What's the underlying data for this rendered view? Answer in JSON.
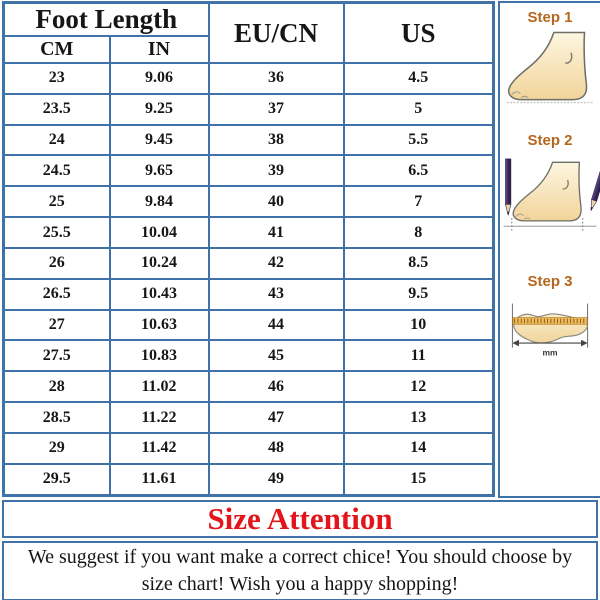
{
  "table": {
    "header": {
      "foot_length": "Foot Length",
      "cm": "CM",
      "in": "IN",
      "eu_cn": "EU/CN",
      "us": "US"
    }
  },
  "chart_data": {
    "type": "table",
    "column_groups": [
      {
        "label": "Foot Length",
        "columns": [
          "CM",
          "IN"
        ]
      }
    ],
    "columns": [
      "CM",
      "IN",
      "EU/CN",
      "US"
    ],
    "rows": [
      [
        "23",
        "9.06",
        "36",
        "4.5"
      ],
      [
        "23.5",
        "9.25",
        "37",
        "5"
      ],
      [
        "24",
        "9.45",
        "38",
        "5.5"
      ],
      [
        "24.5",
        "9.65",
        "39",
        "6.5"
      ],
      [
        "25",
        "9.84",
        "40",
        "7"
      ],
      [
        "25.5",
        "10.04",
        "41",
        "8"
      ],
      [
        "26",
        "10.24",
        "42",
        "8.5"
      ],
      [
        "26.5",
        "10.43",
        "43",
        "9.5"
      ],
      [
        "27",
        "10.63",
        "44",
        "10"
      ],
      [
        "27.5",
        "10.83",
        "45",
        "11"
      ],
      [
        "28",
        "11.02",
        "46",
        "12"
      ],
      [
        "28.5",
        "11.22",
        "47",
        "13"
      ],
      [
        "29",
        "11.42",
        "48",
        "14"
      ],
      [
        "29.5",
        "11.61",
        "49",
        "15"
      ]
    ]
  },
  "steps": [
    {
      "label": "Step 1"
    },
    {
      "label": "Step 2"
    },
    {
      "label": "Step 3",
      "unit": "mm"
    }
  ],
  "attention": {
    "title": "Size Attention"
  },
  "suggestion": {
    "text": "We suggest if you want make a correct chice! You should choose by size chart! Wish you a happy shopping!"
  },
  "colors": {
    "border_blue": "#3f72a8",
    "attention_red": "#e2151b",
    "step_label_brown": "#b5671e",
    "foot_fill": "#f2d49a",
    "ruler_orange": "#f0bc5e"
  }
}
